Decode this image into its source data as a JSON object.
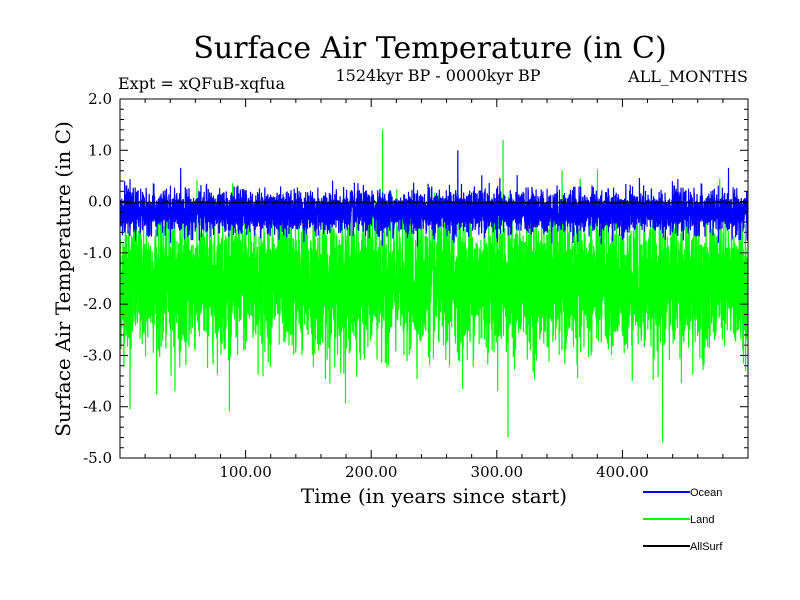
{
  "chart_data": {
    "type": "line",
    "title": "Surface Air Temperature (in C)",
    "subtitle_left": "Expt = xQFuB-xqfua",
    "subtitle_center": "1524kyr BP - 0000kyr BP",
    "subtitle_right": "ALL_MONTHS",
    "xlabel": "Time (in years since start)",
    "ylabel": "Surface Air Temperature (in C)",
    "xlim": [
      0,
      500
    ],
    "ylim": [
      -5.0,
      2.0
    ],
    "xticks": [
      100,
      200,
      300,
      400
    ],
    "xtick_labels": [
      "100.00",
      "200.00",
      "300.00",
      "400.00"
    ],
    "yticks": [
      2.0,
      1.0,
      0.0,
      -1.0,
      -2.0,
      -3.0,
      -4.0,
      -5.0
    ],
    "ytick_labels": [
      "2.0",
      "1.0",
      "0.0",
      "-1.0",
      "-2.0",
      "-3.0",
      "-4.0",
      "-5.0"
    ],
    "series": [
      {
        "name": "Land",
        "color": "#00ff00",
        "mean": -1.6,
        "typical_range": [
          -3.2,
          0.4
        ],
        "min": -4.7,
        "max": 1.4,
        "notable_points": [
          [
            209,
            1.4
          ],
          [
            305,
            1.2
          ],
          [
            432,
            -4.7
          ],
          [
            309,
            -4.6
          ],
          [
            8,
            -4.05
          ]
        ]
      },
      {
        "name": "Ocean",
        "color": "#0000ff",
        "mean": -0.2,
        "typical_range": [
          -0.6,
          0.3
        ],
        "min": -1.1,
        "max": 1.0,
        "notable_points": [
          [
            269,
            1.0
          ]
        ]
      },
      {
        "name": "AllSurf",
        "color": "#000000",
        "mean": -0.02,
        "typical_range": [
          -0.05,
          0.02
        ]
      }
    ],
    "legend": {
      "placement": "bottom-right",
      "entries": [
        "Ocean",
        "Land",
        "AllSurf"
      ]
    },
    "grid": false
  }
}
